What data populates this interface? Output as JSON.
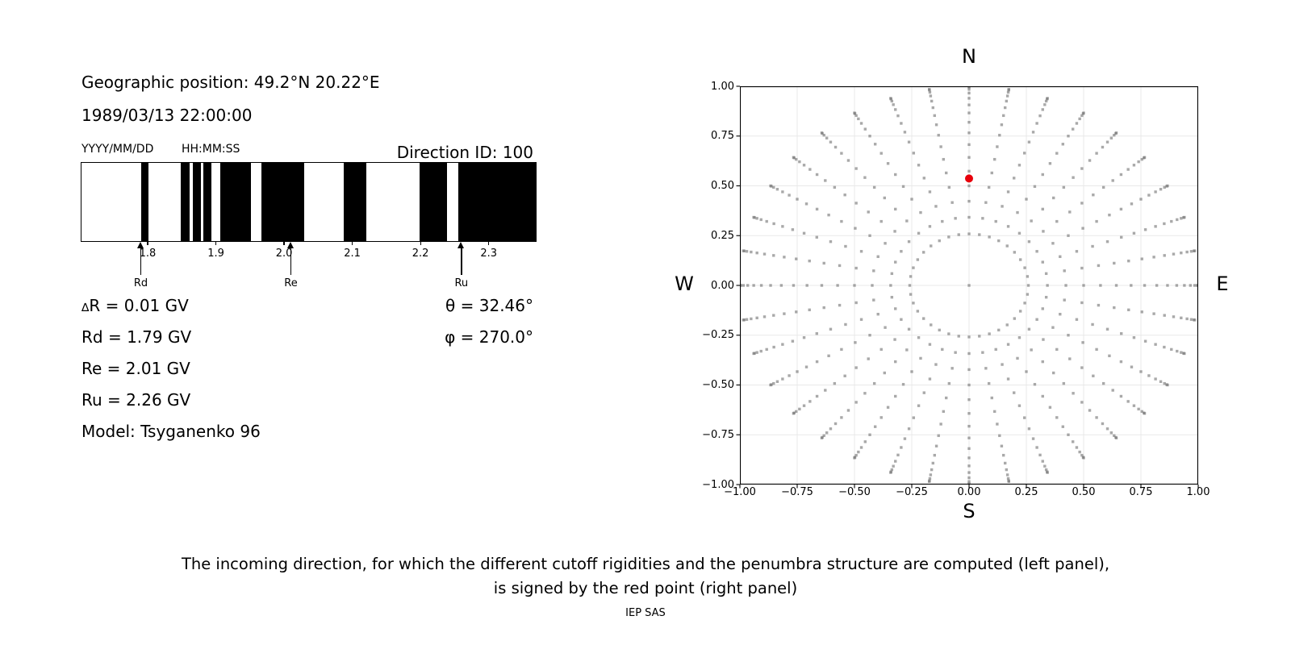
{
  "figure": {
    "background": "#ffffff",
    "caption_line1": "The incoming direction, for which the different cutoff rigidities and the penumbra structure are computed (left panel),",
    "caption_line2": "is signed by the red point (right panel)",
    "credit": "IEP SAS"
  },
  "left_panel": {
    "geo_position": "Geographic position: 49.2°N 20.22°E",
    "datetime": "1989/03/13 22:00:00",
    "date_format_hint": "YYYY/MM/DD",
    "time_format_hint": "HH:MM:SS",
    "direction_id": "Direction ID: 100",
    "delta_row": {
      "symbol": "∆",
      "text": "R = 0.01 GV"
    },
    "rows": [
      "Rd = 1.79 GV",
      "Re = 2.01 GV",
      "Ru = 2.26 GV",
      "Model: Tsyganenko 96"
    ],
    "theta": "θ = 32.46°",
    "phi": "φ = 270.0°"
  },
  "chart_data": [
    {
      "id": "penumbra-barcode",
      "type": "barcode",
      "description": "Cosmic-ray cutoff penumbra structure: black = forbidden rigidity intervals, white = allowed",
      "x_unit": "GV",
      "x_range": [
        1.703,
        2.369
      ],
      "x_ticks": {
        "values": [
          1.8,
          1.9,
          2.0,
          2.1,
          2.2,
          2.3
        ],
        "labels": [
          "1.8",
          "1.9",
          "2.0",
          "2.1",
          "2.2",
          "2.3"
        ]
      },
      "forbidden_bands_gv": [
        [
          1.79,
          1.801
        ],
        [
          1.849,
          1.861
        ],
        [
          1.866,
          1.878
        ],
        [
          1.882,
          1.893
        ],
        [
          1.906,
          1.951
        ],
        [
          1.967,
          2.03
        ],
        [
          2.088,
          2.12
        ],
        [
          2.199,
          2.239
        ],
        [
          2.256,
          2.369
        ]
      ],
      "arrows": [
        {
          "label": "Rd",
          "x": 1.79
        },
        {
          "label": "Re",
          "x": 2.01
        },
        {
          "label": "Ru",
          "x": 2.26
        }
      ],
      "band_color": "#000000"
    },
    {
      "id": "incoming-directions",
      "type": "scatter",
      "compass": {
        "top": "N",
        "bottom": "S",
        "left": "W",
        "right": "E"
      },
      "xlim": [
        -1,
        1
      ],
      "ylim": [
        -1,
        1
      ],
      "grid": true,
      "grid_color": "#e9e9e9",
      "x_ticks": {
        "values": [
          -1,
          -0.75,
          -0.5,
          -0.25,
          0,
          0.25,
          0.5,
          0.75,
          1
        ],
        "labels": [
          "−1.00",
          "−0.75",
          "−0.50",
          "−0.25",
          "0.00",
          "0.25",
          "0.50",
          "0.75",
          "1.00"
        ]
      },
      "y_ticks": {
        "values": [
          1,
          0.75,
          0.5,
          0.25,
          0,
          -0.25,
          -0.5,
          -0.75,
          -1
        ],
        "labels": [
          "1.00",
          "0.75",
          "0.50",
          "0.25",
          "0.00",
          "−0.25",
          "−0.50",
          "−0.75",
          "−1.00"
        ]
      },
      "direction_grid": {
        "azimuth_deg": {
          "start": 0,
          "step": 10,
          "count": 36
        },
        "zenith_deg": [
          15,
          20,
          25,
          30,
          35,
          40,
          45,
          50,
          55,
          60,
          65,
          70,
          75,
          80,
          85,
          90
        ],
        "radius_mapping": "r = sin(zenith)",
        "includes_center_point": true,
        "marker": "square",
        "marker_size_px": 3.4,
        "marker_color": "#707070",
        "marker_opacity": 0.6
      },
      "red_point": {
        "x": 0.0,
        "y": 0.537,
        "theta_deg": 32.46,
        "phi_deg": 270.0,
        "color": "#e8000b",
        "radius_px": 5
      }
    }
  ]
}
